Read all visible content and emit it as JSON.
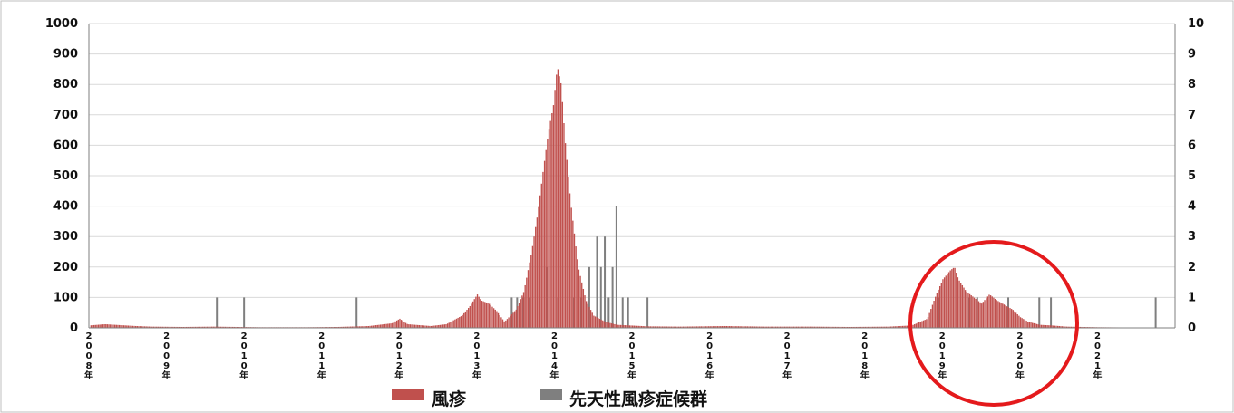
{
  "chart_data": {
    "type": "bar",
    "title": "",
    "xlabel": "",
    "ylabel_left": "",
    "ylabel_right": "",
    "ylim_left": [
      0,
      1000
    ],
    "ylim_right": [
      0,
      10
    ],
    "y_ticks_left": [
      "0",
      "100",
      "200",
      "300",
      "400",
      "500",
      "600",
      "700",
      "800",
      "900",
      "1000"
    ],
    "y_ticks_right": [
      "0",
      "1",
      "2",
      "3",
      "4",
      "5",
      "6",
      "7",
      "8",
      "9",
      "10"
    ],
    "x_range": [
      2008,
      2022
    ],
    "x_tick_labels": [
      "2008年",
      "2009年",
      "2010年",
      "2011年",
      "2012年",
      "2013年",
      "2014年",
      "2015年",
      "2016年",
      "2017年",
      "2018年",
      "2019年",
      "2020年",
      "2021年"
    ],
    "legend_position": "bottom",
    "grid": true,
    "series": [
      {
        "name": "風疹",
        "axis": "left",
        "color": "#C0504D",
        "points": [
          [
            2008.0,
            8
          ],
          [
            2008.2,
            12
          ],
          [
            2008.4,
            9
          ],
          [
            2008.6,
            6
          ],
          [
            2008.8,
            4
          ],
          [
            2009.2,
            3
          ],
          [
            2009.6,
            4
          ],
          [
            2010.2,
            2
          ],
          [
            2010.8,
            2
          ],
          [
            2011.2,
            3
          ],
          [
            2011.6,
            6
          ],
          [
            2011.9,
            15
          ],
          [
            2012.0,
            30
          ],
          [
            2012.1,
            12
          ],
          [
            2012.4,
            6
          ],
          [
            2012.6,
            12
          ],
          [
            2012.8,
            40
          ],
          [
            2012.9,
            70
          ],
          [
            2013.0,
            110
          ],
          [
            2013.05,
            90
          ],
          [
            2013.15,
            80
          ],
          [
            2013.25,
            55
          ],
          [
            2013.35,
            20
          ],
          [
            2013.5,
            60
          ],
          [
            2013.6,
            120
          ],
          [
            2013.7,
            250
          ],
          [
            2013.78,
            380
          ],
          [
            2013.85,
            520
          ],
          [
            2013.92,
            650
          ],
          [
            2013.98,
            730
          ],
          [
            2014.03,
            860
          ],
          [
            2014.08,
            800
          ],
          [
            2014.13,
            620
          ],
          [
            2014.2,
            420
          ],
          [
            2014.3,
            200
          ],
          [
            2014.4,
            90
          ],
          [
            2014.5,
            40
          ],
          [
            2014.65,
            20
          ],
          [
            2014.8,
            10
          ],
          [
            2015.2,
            5
          ],
          [
            2015.6,
            4
          ],
          [
            2016.2,
            6
          ],
          [
            2016.7,
            4
          ],
          [
            2017.3,
            4
          ],
          [
            2017.8,
            3
          ],
          [
            2018.3,
            4
          ],
          [
            2018.6,
            8
          ],
          [
            2018.8,
            30
          ],
          [
            2018.9,
            100
          ],
          [
            2019.0,
            160
          ],
          [
            2019.1,
            190
          ],
          [
            2019.15,
            200
          ],
          [
            2019.2,
            160
          ],
          [
            2019.3,
            120
          ],
          [
            2019.4,
            100
          ],
          [
            2019.5,
            80
          ],
          [
            2019.6,
            110
          ],
          [
            2019.7,
            90
          ],
          [
            2019.8,
            75
          ],
          [
            2019.9,
            60
          ],
          [
            2020.0,
            35
          ],
          [
            2020.1,
            20
          ],
          [
            2020.25,
            10
          ],
          [
            2020.4,
            8
          ],
          [
            2020.6,
            4
          ],
          [
            2021.0,
            2
          ],
          [
            2021.6,
            1
          ]
        ]
      },
      {
        "name": "先天性風疹症候群",
        "axis": "right",
        "color": "#7F7F7F",
        "points": [
          [
            2009.65,
            1
          ],
          [
            2010.0,
            1
          ],
          [
            2011.45,
            1
          ],
          [
            2013.45,
            1
          ],
          [
            2013.52,
            1
          ],
          [
            2013.6,
            1
          ],
          [
            2013.68,
            1
          ],
          [
            2013.9,
            2
          ],
          [
            2014.05,
            1
          ],
          [
            2014.25,
            1
          ],
          [
            2014.35,
            1
          ],
          [
            2014.45,
            2
          ],
          [
            2014.55,
            3
          ],
          [
            2014.6,
            2
          ],
          [
            2014.65,
            3
          ],
          [
            2014.7,
            1
          ],
          [
            2014.75,
            2
          ],
          [
            2014.8,
            4
          ],
          [
            2014.88,
            1
          ],
          [
            2014.95,
            1
          ],
          [
            2015.2,
            1
          ],
          [
            2018.95,
            1
          ],
          [
            2019.35,
            1
          ],
          [
            2019.45,
            1
          ],
          [
            2019.85,
            1
          ],
          [
            2020.25,
            1
          ],
          [
            2020.4,
            1
          ],
          [
            2021.75,
            1
          ]
        ]
      }
    ]
  }
}
